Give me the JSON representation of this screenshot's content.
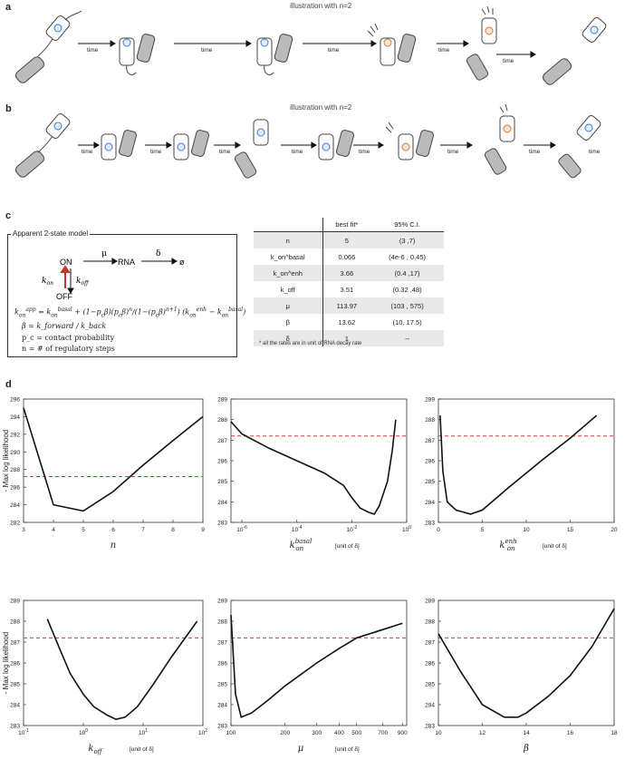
{
  "panel_a": {
    "letter": "a",
    "title": "illustration with n=2",
    "time_labels": [
      "time",
      "time",
      "time",
      "time",
      "time"
    ]
  },
  "panel_b": {
    "letter": "b",
    "title": "illustration with n=2",
    "time_labels": [
      "time",
      "time",
      "time",
      "time",
      "time",
      "time",
      "time",
      "time"
    ]
  },
  "panel_c": {
    "letter": "c",
    "model_title": "Apparent 2-state model",
    "states": {
      "on": "ON",
      "off": "OFF",
      "rna": "RNA",
      "empty": "ø"
    },
    "rates": {
      "mu": "μ",
      "delta": "δ"
    },
    "equations": {
      "beta_def": "β = k_forward / k_back",
      "pc_def": "p_c = contact probability",
      "n_def": "n = # of regulatory steps"
    },
    "table": {
      "headers": [
        "",
        "best fit*",
        "95% C.I."
      ],
      "rows": [
        {
          "param": "n",
          "best": "5",
          "ci": "(3 ,7)"
        },
        {
          "param": "k_on^basal",
          "best": "0.066",
          "ci": "(4e-6 , 0.45)"
        },
        {
          "param": "k_on^enh",
          "best": "3.66",
          "ci": "(0.4 ,17)"
        },
        {
          "param": "k_off",
          "best": "3.51",
          "ci": "(0.32 ,48)"
        },
        {
          "param": "μ",
          "best": "113.97",
          "ci": "(103 , 575)"
        },
        {
          "param": "β",
          "best": "13.62",
          "ci": "(10, 17.5)"
        },
        {
          "param": "δ",
          "best": "1",
          "ci": "--"
        }
      ],
      "footnote": "* all the rates are in unit of RNA decay rate"
    }
  },
  "panel_d": {
    "letter": "d",
    "ylabel": "- Max log likelihood"
  },
  "chart_data": [
    {
      "type": "line",
      "x": [
        3,
        3.5,
        4,
        5,
        6,
        7,
        8,
        9
      ],
      "y": [
        295,
        289.5,
        284,
        283.3,
        285.5,
        288.5,
        291.3,
        294
      ],
      "threshold": 287.2,
      "xlim": [
        3,
        9
      ],
      "ylim": [
        282,
        296
      ],
      "xticks": [
        "3",
        "4",
        "5",
        "6",
        "7",
        "8",
        "9"
      ],
      "yticks": [
        "282",
        "284",
        "286",
        "288",
        "290",
        "292",
        "294",
        "296"
      ],
      "xlabel": "n",
      "unit": "",
      "xscale": "linear"
    },
    {
      "type": "line",
      "x": [
        4e-07,
        1e-06,
        1e-05,
        0.0001,
        0.001,
        0.005,
        0.01,
        0.02,
        0.04,
        0.066,
        0.1,
        0.2,
        0.3,
        0.4
      ],
      "y": [
        287.9,
        287.3,
        286.6,
        286.0,
        285.4,
        284.8,
        284.2,
        283.7,
        283.5,
        283.4,
        283.8,
        285.0,
        286.5,
        288.0
      ],
      "threshold": 287.2,
      "xlim": [
        4e-07,
        1
      ],
      "ylim": [
        283,
        289
      ],
      "xticks": [
        "10^-6",
        "10^-4",
        "10^-2",
        "10^0"
      ],
      "yticks": [
        "283",
        "284",
        "285",
        "286",
        "287",
        "288",
        "289"
      ],
      "xlabel": "k_on^basal",
      "unit": "[unit of δ]",
      "xscale": "log"
    },
    {
      "type": "line",
      "x": [
        0.2,
        0.5,
        1,
        2,
        3.66,
        5,
        8,
        12,
        15,
        18
      ],
      "y": [
        288.2,
        285.5,
        284.0,
        283.6,
        283.4,
        283.6,
        284.7,
        286.1,
        287.1,
        288.2
      ],
      "threshold": 287.2,
      "xlim": [
        0,
        20
      ],
      "ylim": [
        283,
        289
      ],
      "xticks": [
        "0",
        "5",
        "10",
        "15",
        "20"
      ],
      "yticks": [
        "283",
        "284",
        "285",
        "286",
        "287",
        "288",
        "289"
      ],
      "xlabel": "k_on^enh",
      "unit": "[unit of δ]",
      "xscale": "linear"
    },
    {
      "type": "line",
      "x": [
        0.25,
        0.4,
        0.6,
        1,
        1.5,
        2.5,
        3.51,
        5,
        8,
        15,
        30,
        80
      ],
      "y": [
        288.1,
        286.7,
        285.5,
        284.5,
        283.9,
        283.5,
        283.3,
        283.4,
        283.9,
        285.0,
        286.3,
        288.0
      ],
      "threshold": 287.2,
      "xlim": [
        0.1,
        100
      ],
      "ylim": [
        283,
        289
      ],
      "xticks": [
        "10^-1",
        "10^0",
        "10^1",
        "10^2"
      ],
      "yticks": [
        "283",
        "284",
        "285",
        "286",
        "287",
        "288",
        "289"
      ],
      "xlabel": "k_off",
      "unit": "[unit of δ]",
      "xscale": "log"
    },
    {
      "type": "line",
      "x": [
        100,
        106,
        114,
        130,
        160,
        200,
        300,
        400,
        500,
        700,
        900
      ],
      "y": [
        288.3,
        284.5,
        283.4,
        283.6,
        284.2,
        284.9,
        286.0,
        286.7,
        287.2,
        287.6,
        287.9
      ],
      "threshold": 287.2,
      "xlim": [
        100,
        950
      ],
      "ylim": [
        283,
        289
      ],
      "xticks": [
        "100",
        "200",
        "300",
        "400",
        "500",
        "700",
        "900"
      ],
      "yticks": [
        "283",
        "284",
        "285",
        "286",
        "287",
        "288",
        "289"
      ],
      "xlabel": "μ",
      "unit": "[unit of δ]",
      "xscale": "log"
    },
    {
      "type": "line",
      "x": [
        10,
        11,
        12,
        13,
        13.62,
        14,
        15,
        16,
        17,
        18
      ],
      "y": [
        287.4,
        285.6,
        284.0,
        283.4,
        283.4,
        283.6,
        284.4,
        285.4,
        286.8,
        288.6
      ],
      "threshold": 287.2,
      "xlim": [
        10,
        18
      ],
      "ylim": [
        283,
        289
      ],
      "xticks": [
        "10",
        "12",
        "14",
        "16",
        "18"
      ],
      "yticks": [
        "283",
        "284",
        "285",
        "286",
        "287",
        "288",
        "289"
      ],
      "xlabel": "β",
      "unit": "",
      "xscale": "linear"
    }
  ]
}
